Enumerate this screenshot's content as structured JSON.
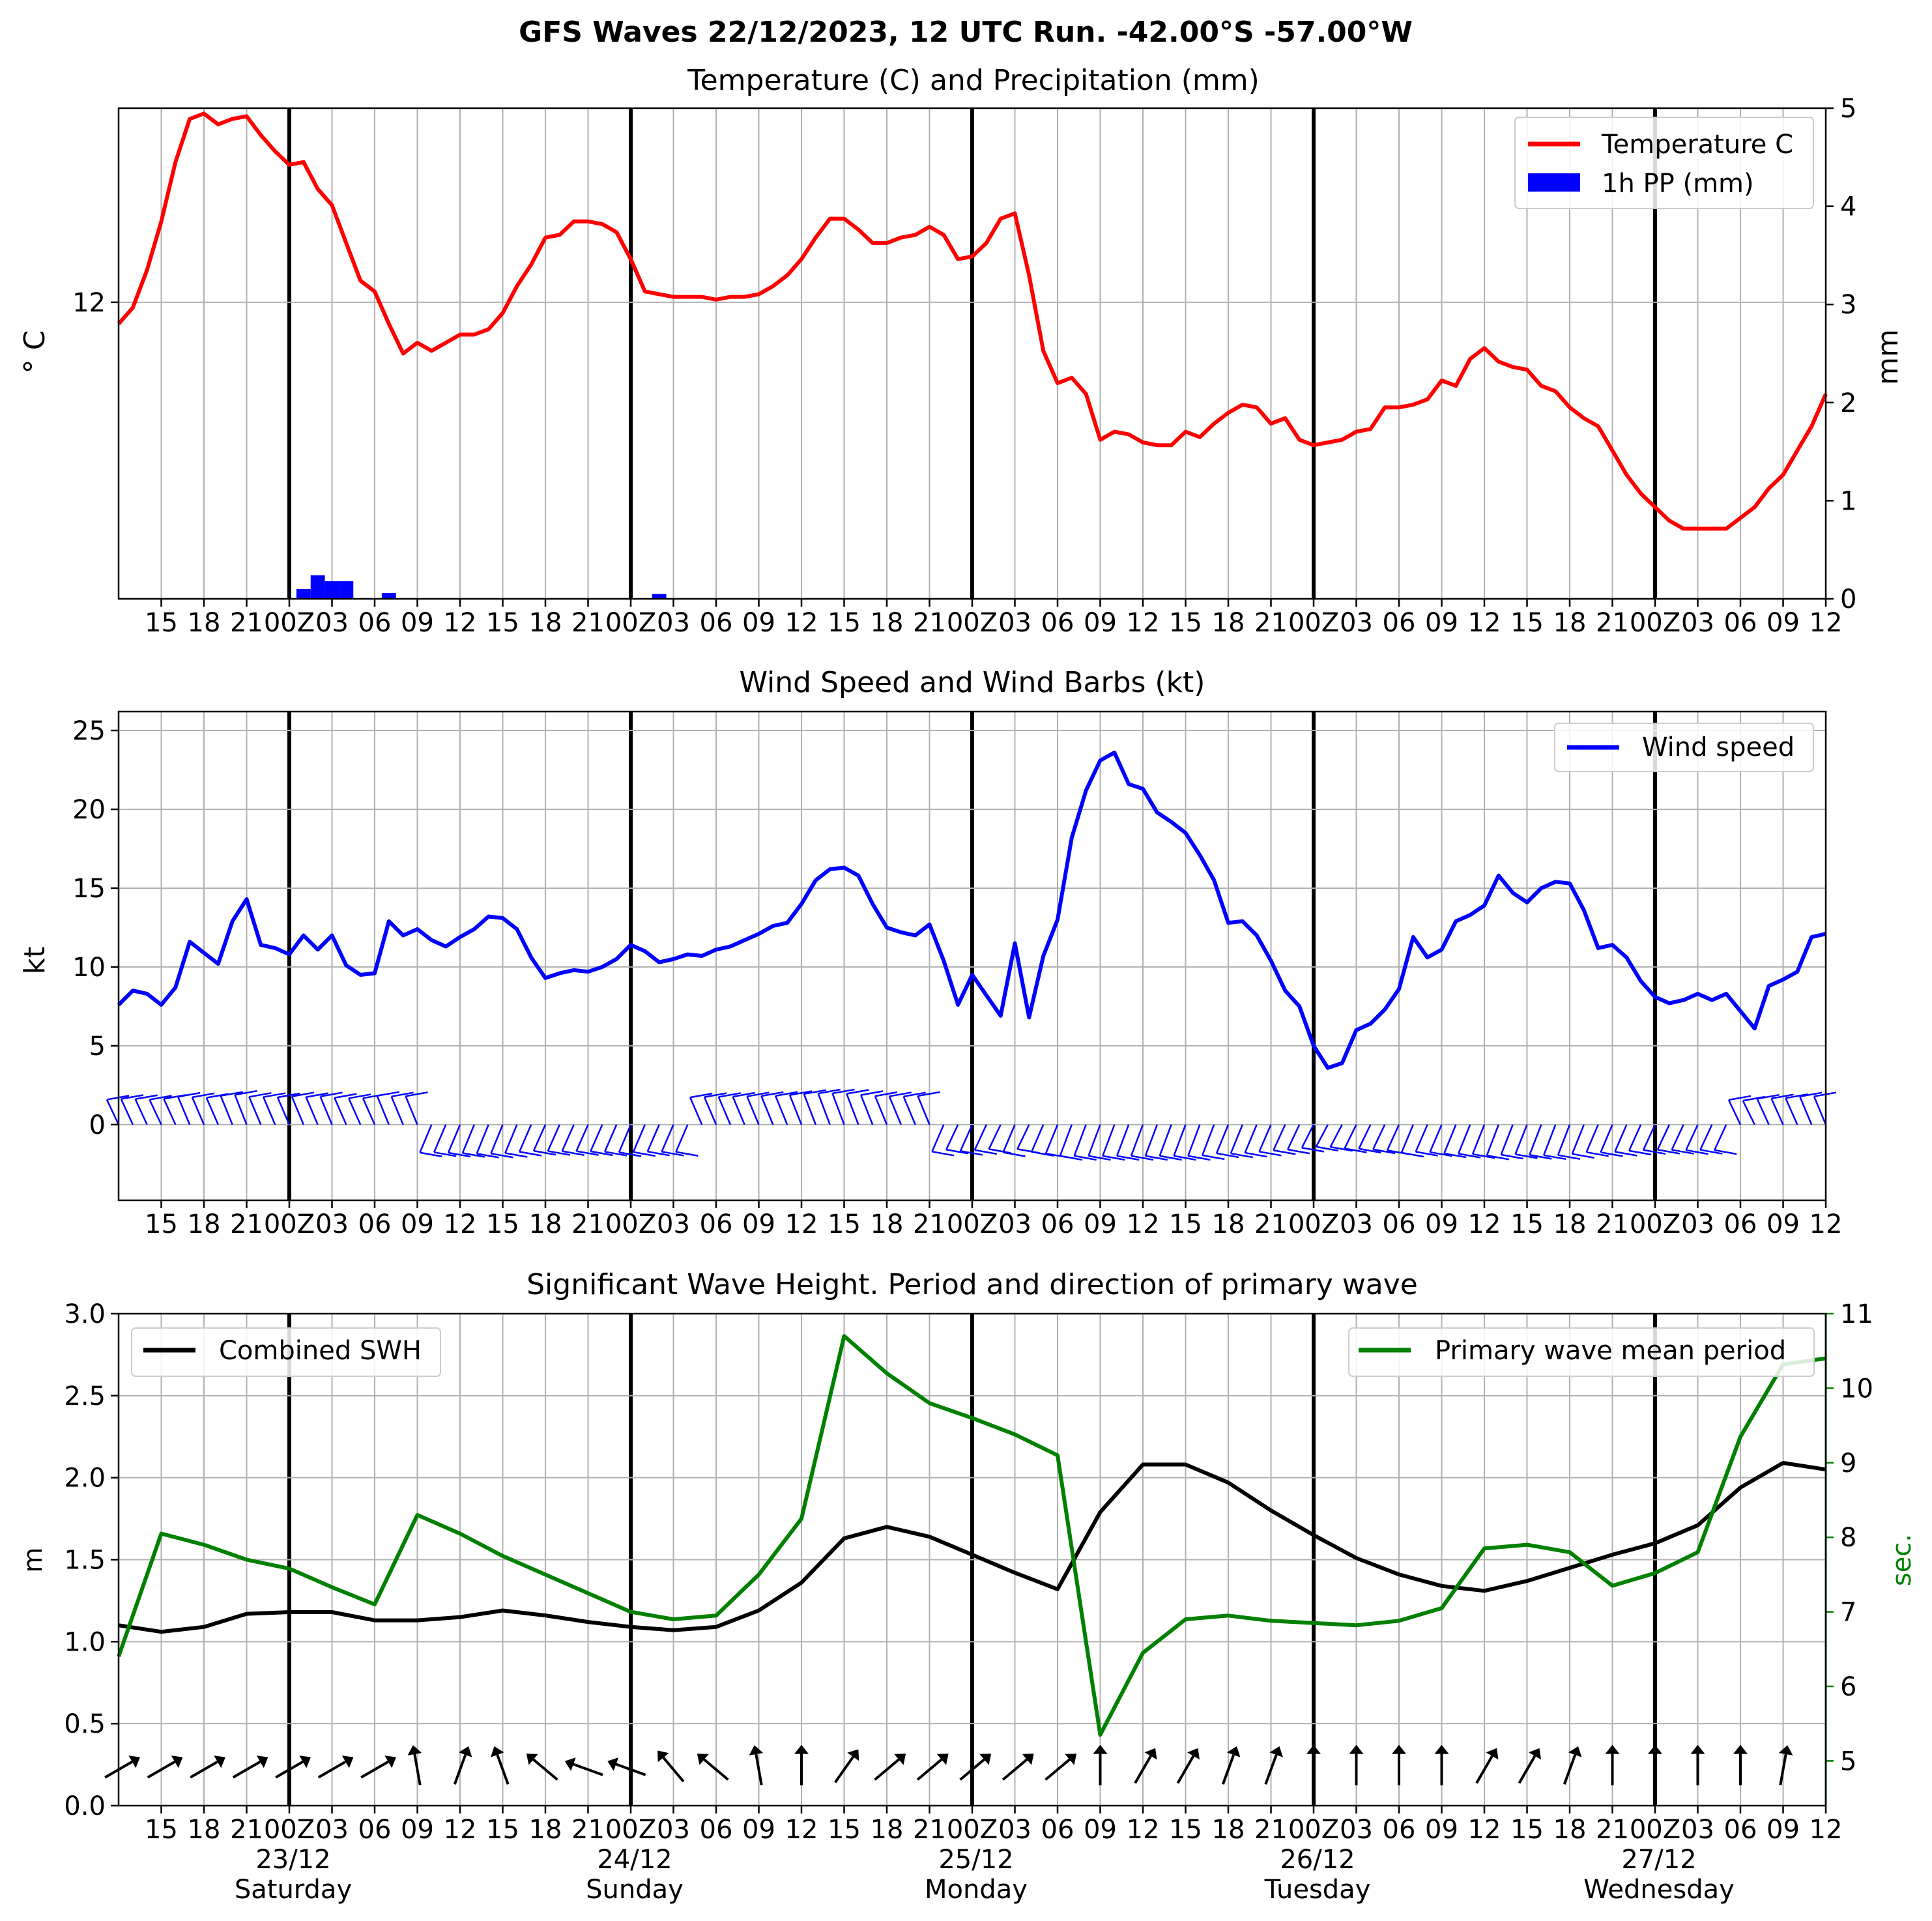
{
  "page_title": "GFS Waves 22/12/2023, 12 UTC Run. -42.00°S -57.00°W",
  "x_axis": {
    "tick_labels": [
      "15",
      "18",
      "21",
      "00Z",
      "03",
      "06",
      "09",
      "12",
      "15",
      "18",
      "21",
      "00Z",
      "03",
      "06",
      "09",
      "12",
      "15",
      "18",
      "21",
      "00Z",
      "03",
      "06",
      "09",
      "12",
      "15",
      "18",
      "21",
      "00Z",
      "03",
      "06",
      "09",
      "12",
      "15",
      "18",
      "21",
      "00Z",
      "03",
      "06",
      "09",
      "12"
    ],
    "day_labels": [
      {
        "date": "23/12",
        "weekday": "Saturday"
      },
      {
        "date": "24/12",
        "weekday": "Sunday"
      },
      {
        "date": "25/12",
        "weekday": "Monday"
      },
      {
        "date": "26/12",
        "weekday": "Tuesday"
      },
      {
        "date": "27/12",
        "weekday": "Wednesday"
      }
    ]
  },
  "chart_data": [
    {
      "type": "line",
      "title": "Temperature (C) and Precipitation (mm)",
      "ylabel": "$^\\circ$C",
      "ylabel_display": "° C",
      "ylabel_right": "mm",
      "xlim_hours": [
        12,
        132
      ],
      "ylim": [
        6.5,
        15.6
      ],
      "yticks": [
        12
      ],
      "ylim_right": [
        0,
        5
      ],
      "yticks_right": [
        0,
        1,
        2,
        3,
        4,
        5
      ],
      "legend": {
        "position": "top-right",
        "entries": [
          "Temperature C",
          "1h PP (mm)"
        ]
      },
      "series": [
        {
          "name": "Temperature C",
          "color": "#ff0000",
          "type": "line",
          "x": [
            12,
            13,
            14,
            15,
            16,
            17,
            18,
            19,
            20,
            21,
            22,
            23,
            24,
            25,
            26,
            27,
            28,
            29,
            30,
            31,
            32,
            33,
            34,
            35,
            36,
            37,
            38,
            39,
            40,
            41,
            42,
            43,
            44,
            45,
            46,
            47,
            48,
            49,
            50,
            51,
            52,
            53,
            54,
            55,
            56,
            57,
            58,
            59,
            60,
            61,
            62,
            63,
            64,
            65,
            66,
            67,
            68,
            69,
            70,
            71,
            72,
            73,
            74,
            75,
            76,
            77,
            78,
            79,
            80,
            81,
            82,
            83,
            84,
            85,
            86,
            87,
            88,
            89,
            90,
            91,
            92,
            93,
            94,
            95,
            96,
            97,
            98,
            99,
            100,
            101,
            102,
            103,
            104,
            105,
            106,
            107,
            108,
            109,
            110,
            111,
            112,
            113,
            114,
            115,
            116,
            117,
            118,
            119,
            120,
            121,
            122,
            123,
            124,
            125,
            126,
            127,
            128,
            129,
            130,
            131,
            132
          ],
          "y": [
            11.6,
            11.9,
            12.6,
            13.5,
            14.6,
            15.4,
            15.5,
            15.3,
            15.4,
            15.45,
            15.1,
            14.8,
            14.55,
            14.6,
            14.1,
            13.8,
            13.1,
            12.4,
            12.2,
            11.6,
            11.05,
            11.25,
            11.1,
            11.25,
            11.4,
            11.4,
            11.5,
            11.8,
            12.3,
            12.7,
            13.2,
            13.25,
            13.5,
            13.5,
            13.45,
            13.3,
            12.8,
            12.2,
            12.15,
            12.1,
            12.1,
            12.1,
            12.05,
            12.1,
            12.1,
            12.15,
            12.3,
            12.5,
            12.8,
            13.2,
            13.55,
            13.55,
            13.35,
            13.1,
            13.1,
            13.2,
            13.25,
            13.4,
            13.25,
            12.8,
            12.85,
            13.1,
            13.55,
            13.65,
            12.5,
            11.1,
            10.5,
            10.6,
            10.3,
            9.45,
            9.6,
            9.55,
            9.4,
            9.35,
            9.35,
            9.6,
            9.5,
            9.75,
            9.95,
            10.1,
            10.05,
            9.75,
            9.85,
            9.45,
            9.35,
            9.4,
            9.45,
            9.6,
            9.65,
            10.05,
            10.05,
            10.1,
            10.2,
            10.55,
            10.45,
            10.95,
            11.15,
            10.9,
            10.8,
            10.75,
            10.45,
            10.35,
            10.05,
            9.85,
            9.7,
            9.25,
            8.8,
            8.45,
            8.2,
            7.95,
            7.8,
            7.8,
            7.8,
            7.8,
            8.0,
            8.2,
            8.55,
            8.8,
            9.25,
            9.7,
            10.3
          ]
        },
        {
          "name": "1h PP (mm)",
          "color": "#0000ff",
          "type": "bar",
          "x": [
            25,
            26,
            27,
            28,
            31,
            49,
            50
          ],
          "values": [
            0.1,
            0.24,
            0.18,
            0.18,
            0.06,
            0.0,
            0.05
          ]
        }
      ]
    },
    {
      "type": "line",
      "title": "Wind Speed and Wind Barbs (kt)",
      "ylabel": "kt",
      "xlim_hours": [
        12,
        132
      ],
      "ylim": [
        -4.8,
        26.2
      ],
      "yticks": [
        0,
        5,
        10,
        15,
        20,
        25
      ],
      "legend": {
        "position": "top-right",
        "entries": [
          "Wind speed"
        ]
      },
      "series": [
        {
          "name": "Wind speed",
          "color": "#0000ff",
          "x": [
            12,
            13,
            14,
            15,
            16,
            17,
            18,
            19,
            20,
            21,
            22,
            23,
            24,
            25,
            26,
            27,
            28,
            29,
            30,
            31,
            32,
            33,
            34,
            35,
            36,
            37,
            38,
            39,
            40,
            41,
            42,
            43,
            44,
            45,
            46,
            47,
            48,
            49,
            50,
            51,
            52,
            53,
            54,
            55,
            56,
            57,
            58,
            59,
            60,
            61,
            62,
            63,
            64,
            65,
            66,
            67,
            68,
            69,
            70,
            71,
            72,
            73,
            74,
            75,
            76,
            77,
            78,
            79,
            80,
            81,
            82,
            83,
            84,
            85,
            86,
            87,
            88,
            89,
            90,
            91,
            92,
            93,
            94,
            95,
            96,
            97,
            98,
            99,
            100,
            101,
            102,
            103,
            104,
            105,
            106,
            107,
            108,
            109,
            110,
            111,
            112,
            113,
            114,
            115,
            116,
            117,
            118,
            119,
            120,
            121,
            122,
            123,
            124,
            125,
            126,
            127,
            128,
            129,
            130,
            131,
            132
          ],
          "y": [
            7.6,
            8.5,
            8.3,
            7.6,
            8.7,
            11.6,
            10.9,
            10.2,
            12.9,
            14.3,
            11.4,
            11.2,
            10.8,
            12.0,
            11.1,
            12.0,
            10.1,
            9.5,
            9.6,
            12.9,
            12.0,
            12.4,
            11.7,
            11.3,
            11.9,
            12.4,
            13.2,
            13.1,
            12.4,
            10.6,
            9.3,
            9.6,
            9.8,
            9.7,
            10.0,
            10.5,
            11.4,
            11.0,
            10.3,
            10.5,
            10.8,
            10.7,
            11.1,
            11.3,
            11.7,
            12.1,
            12.6,
            12.8,
            14.0,
            15.5,
            16.2,
            16.3,
            15.8,
            14.0,
            12.5,
            12.2,
            12.0,
            12.7,
            10.4,
            7.6,
            9.5,
            8.2,
            6.9,
            11.5,
            6.8,
            10.7,
            13.0,
            18.2,
            21.2,
            23.1,
            23.6,
            21.6,
            21.3,
            19.8,
            19.2,
            18.5,
            17.1,
            15.5,
            12.8,
            12.9,
            12.0,
            10.4,
            8.5,
            7.5,
            5.0,
            3.6,
            3.9,
            6.0,
            6.4,
            7.3,
            8.6,
            11.9,
            10.6,
            11.1,
            12.9,
            13.3,
            13.9,
            15.8,
            14.7,
            14.1,
            15.0,
            15.4,
            15.3,
            13.6,
            11.2,
            11.4,
            10.6,
            9.1,
            8.1,
            7.7,
            7.9,
            8.3,
            7.9,
            8.3,
            7.2,
            6.1,
            8.8,
            9.2,
            9.7,
            11.9,
            12.1
          ]
        }
      ]
    },
    {
      "type": "line",
      "title": "Significant Wave Height. Period and direction of primary wave",
      "ylabel": "m",
      "ylabel_right": "sec.",
      "xlim_hours": [
        12,
        132
      ],
      "ylim": [
        0,
        3.0
      ],
      "yticks": [
        0.0,
        0.5,
        1.0,
        1.5,
        2.0,
        2.5,
        3.0
      ],
      "ylim_right": [
        4.4,
        11
      ],
      "yticks_right": [
        5,
        6,
        7,
        8,
        9,
        10,
        11
      ],
      "legends": [
        {
          "position": "top-left",
          "entries": [
            "Combined SWH"
          ]
        },
        {
          "position": "top-right",
          "entries": [
            "Primary wave mean period"
          ]
        }
      ],
      "series": [
        {
          "name": "Combined SWH",
          "color": "#000000",
          "x": [
            12,
            15,
            18,
            21,
            24,
            27,
            30,
            33,
            36,
            39,
            42,
            45,
            48,
            51,
            54,
            57,
            60,
            63,
            66,
            69,
            72,
            75,
            78,
            81,
            84,
            87,
            90,
            93,
            96,
            99,
            102,
            105,
            108,
            111,
            114,
            117,
            120,
            123,
            126,
            129,
            132
          ],
          "y": [
            1.1,
            1.06,
            1.09,
            1.17,
            1.18,
            1.18,
            1.13,
            1.13,
            1.15,
            1.19,
            1.16,
            1.12,
            1.09,
            1.07,
            1.09,
            1.19,
            1.36,
            1.63,
            1.7,
            1.64,
            1.53,
            1.42,
            1.32,
            1.79,
            2.08,
            2.08,
            1.97,
            1.8,
            1.65,
            1.51,
            1.41,
            1.34,
            1.31,
            1.37,
            1.45,
            1.53,
            1.6,
            1.71,
            1.94,
            2.09,
            2.05
          ]
        },
        {
          "name": "Primary wave mean period",
          "color": "#008000",
          "x": [
            12,
            15,
            18,
            21,
            24,
            27,
            30,
            33,
            36,
            39,
            42,
            45,
            48,
            51,
            54,
            57,
            60,
            63,
            66,
            69,
            72,
            75,
            78,
            81,
            84,
            87,
            90,
            93,
            96,
            99,
            102,
            105,
            108,
            111,
            114,
            117,
            120,
            123,
            126,
            129,
            132
          ],
          "y": [
            6.4,
            8.05,
            7.9,
            7.7,
            7.58,
            7.33,
            7.1,
            8.3,
            8.05,
            7.75,
            7.5,
            7.25,
            7.0,
            6.9,
            6.95,
            7.5,
            8.25,
            10.7,
            10.2,
            9.8,
            9.6,
            9.38,
            9.1,
            5.35,
            6.45,
            6.9,
            6.95,
            6.88,
            6.85,
            6.82,
            6.88,
            7.05,
            7.85,
            7.9,
            7.8,
            7.35,
            7.52,
            7.8,
            9.35,
            10.32,
            10.4
          ]
        },
        {
          "name": "primary wave direction",
          "color": "#000000",
          "x": [
            12,
            15,
            18,
            21,
            24,
            27,
            30,
            33,
            36,
            39,
            42,
            45,
            48,
            51,
            54,
            57,
            60,
            63,
            66,
            69,
            72,
            75,
            78,
            81,
            84,
            87,
            90,
            93,
            96,
            99,
            102,
            105,
            108,
            111,
            114,
            117,
            120,
            123,
            126,
            129,
            132
          ],
          "direction_from_deg": [
            240,
            240,
            240,
            240,
            240,
            240,
            240,
            170,
            200,
            160,
            130,
            110,
            110,
            140,
            130,
            170,
            180,
            215,
            230,
            230,
            230,
            230,
            230,
            180,
            210,
            210,
            200,
            200,
            180,
            180,
            180,
            180,
            210,
            210,
            200,
            180,
            180,
            180,
            180,
            190,
            null
          ]
        }
      ]
    }
  ]
}
